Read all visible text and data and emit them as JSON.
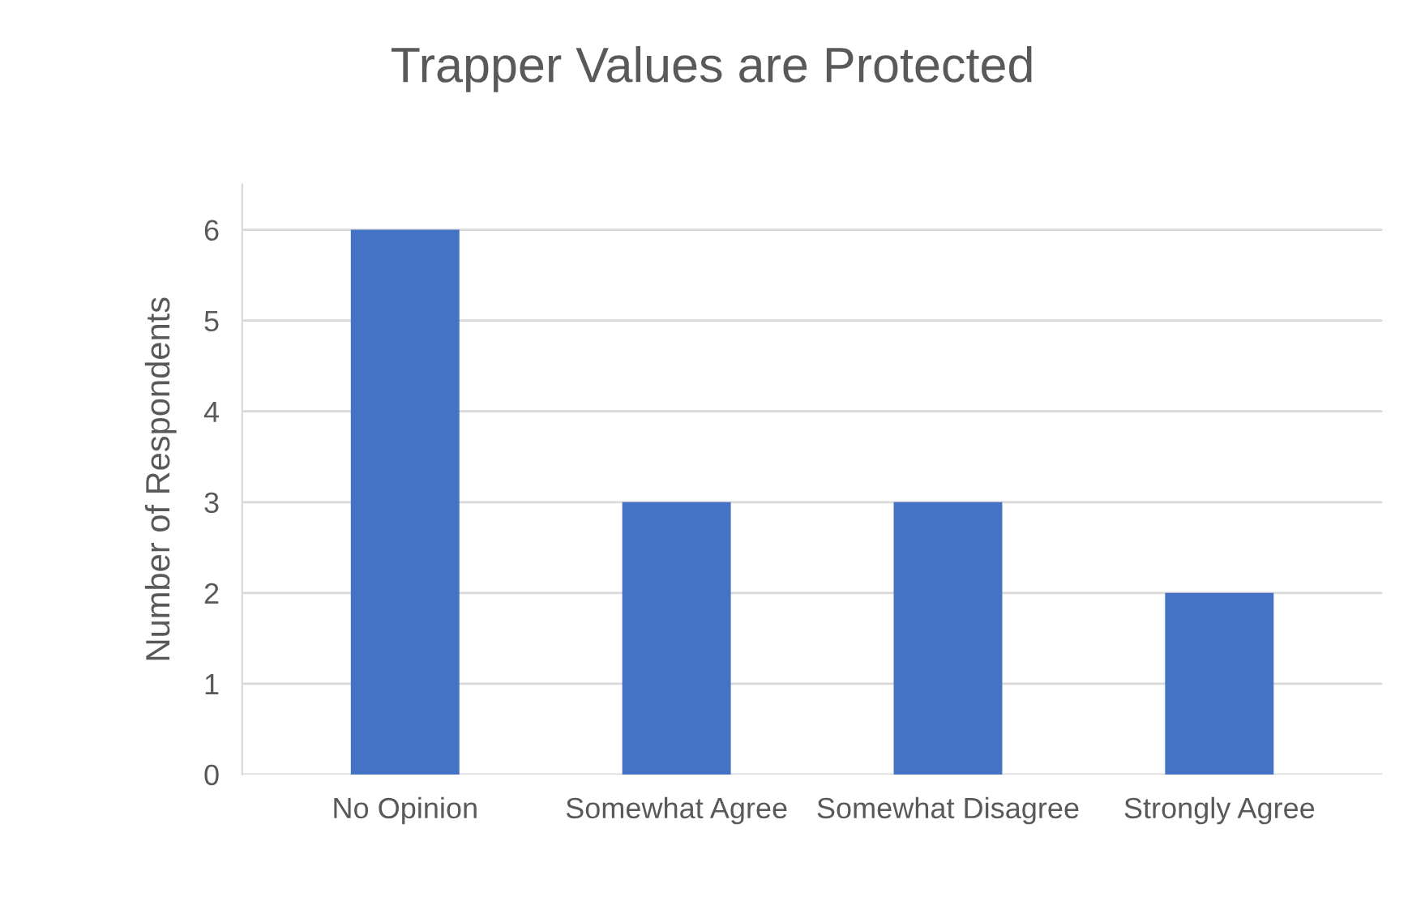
{
  "chart_data": {
    "type": "bar",
    "title": "Trapper Values are Protected",
    "ylabel": "Number of Respondents",
    "categories": [
      "No Opinion",
      "Somewhat Agree",
      "Somewhat Disagree",
      "Strongly Agree"
    ],
    "values": [
      6,
      3,
      3,
      2
    ],
    "color": "#4472c4",
    "ylim": [
      0,
      6.5
    ],
    "yticks": [
      0,
      1,
      2,
      3,
      4,
      5,
      6
    ],
    "grid": "y"
  }
}
